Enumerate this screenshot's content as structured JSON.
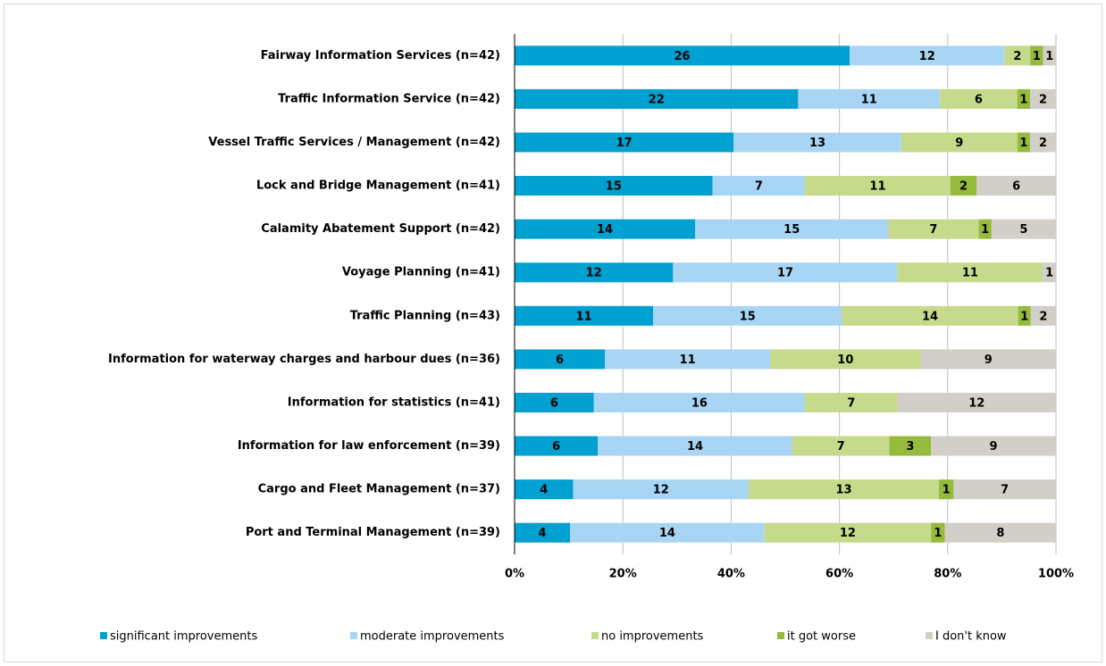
{
  "chart_data": {
    "type": "bar",
    "orientation": "horizontal",
    "stacking": "percent",
    "categories": [
      "Fairway Information Services (n=42)",
      "Traffic Information Service (n=42)",
      "Vessel Traffic Services / Management (n=42)",
      "Lock and Bridge Management (n=41)",
      "Calamity Abatement Support (n=42)",
      "Voyage Planning (n=41)",
      "Traffic Planning (n=43)",
      "Information for waterway charges and harbour dues (n=36)",
      "Information for statistics (n=41)",
      "Information for law enforcement (n=39)",
      "Cargo and Fleet Management (n=37)",
      "Port and Terminal Management (n=39)"
    ],
    "series": [
      {
        "name": "significant improvements",
        "color": "#00a0d1",
        "values": [
          26,
          22,
          17,
          15,
          14,
          12,
          11,
          6,
          6,
          6,
          4,
          4
        ]
      },
      {
        "name": "moderate improvements",
        "color": "#a9d5f5",
        "values": [
          12,
          11,
          13,
          7,
          15,
          17,
          15,
          11,
          16,
          14,
          12,
          14
        ]
      },
      {
        "name": "no improvements",
        "color": "#c6da8b",
        "values": [
          2,
          6,
          9,
          11,
          7,
          11,
          14,
          10,
          7,
          7,
          13,
          12
        ]
      },
      {
        "name": "it got worse",
        "color": "#95ba3c",
        "values": [
          1,
          1,
          1,
          2,
          1,
          null,
          1,
          null,
          null,
          3,
          1,
          1
        ]
      },
      {
        "name": "I don't know",
        "color": "#d1cfc8",
        "values": [
          1,
          2,
          2,
          6,
          5,
          1,
          2,
          9,
          12,
          9,
          7,
          8
        ]
      }
    ],
    "xlim": [
      0,
      100
    ],
    "xticks": [
      {
        "value": 0,
        "label": "0%"
      },
      {
        "value": 20,
        "label": "20%"
      },
      {
        "value": 40,
        "label": "40%"
      },
      {
        "value": 60,
        "label": "60%"
      },
      {
        "value": 80,
        "label": "80%"
      },
      {
        "value": 100,
        "label": "100%"
      }
    ],
    "grid": true,
    "legend": "bottom"
  }
}
